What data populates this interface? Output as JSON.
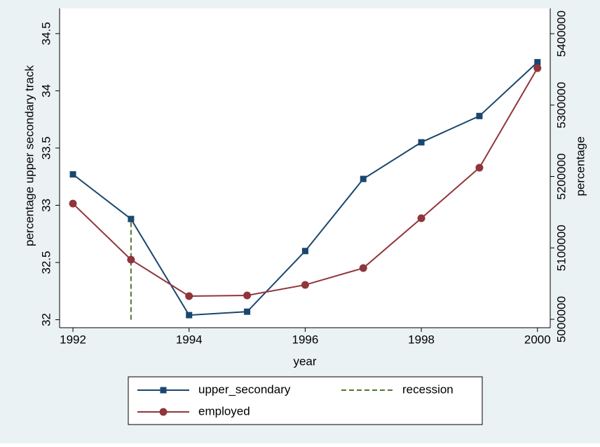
{
  "chart_data": {
    "type": "line",
    "x_label": "year",
    "y_label": "percentage upper secondary track",
    "y2_label": "percentage",
    "xlim": [
      1991.77,
      2000.22
    ],
    "xticks": [
      1992,
      1994,
      1996,
      1998,
      2000
    ],
    "ylim": [
      31.93,
      34.72
    ],
    "yticks": [
      32,
      32.5,
      33,
      33.5,
      34,
      34.5
    ],
    "y2lim": [
      4988200,
      5435400
    ],
    "y2ticks": [
      5000000,
      5100000,
      5200000,
      5300000,
      5400000
    ],
    "legend": "bottom",
    "series": [
      {
        "name": "upper_secondary",
        "color": "#1a476f",
        "marker": "square",
        "x": [
          1992,
          1993,
          1994,
          1995,
          1996,
          1997,
          1998,
          1999,
          2000
        ],
        "values": [
          33.27,
          32.88,
          32.04,
          32.07,
          32.6,
          33.23,
          33.55,
          33.78,
          34.25
        ]
      },
      {
        "name": "recession",
        "color": "#55752f",
        "line_style": "dashed",
        "x": [
          1993,
          1993
        ],
        "values": [
          32,
          32.88
        ]
      },
      {
        "name": "employed",
        "color": "#90353b",
        "marker": "circle",
        "axis": "y2",
        "x": [
          1992,
          1993,
          1994,
          1995,
          1996,
          1997,
          1998,
          1999,
          2000
        ],
        "values": [
          5162000,
          5083500,
          5032400,
          5033400,
          5048200,
          5071700,
          5141500,
          5212300,
          5351800
        ]
      }
    ]
  }
}
